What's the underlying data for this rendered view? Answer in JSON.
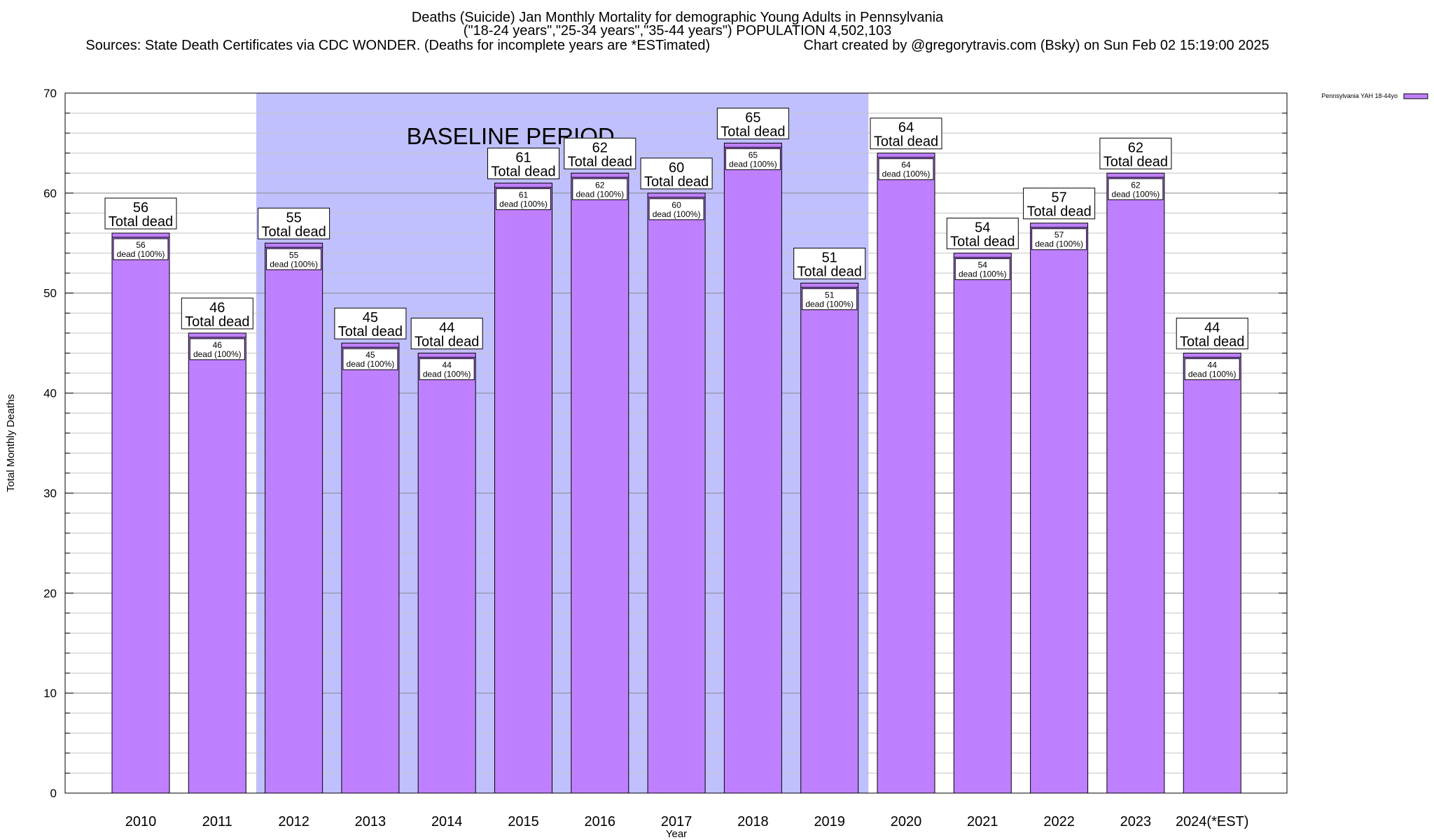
{
  "chart_data": {
    "type": "bar",
    "title": "Deaths (Suicide) Jan Monthly Mortality for demographic Young Adults in Pennsylvania",
    "subtitle": "(\"18-24 years\",\"25-34 years\",\"35-44 years\") POPULATION 4,502,103",
    "source": "Sources: State Death Certificates via CDC WONDER. (Deaths for incomplete years are *ESTimated)",
    "credit": "Chart created by @gregorytravis.com (Bsky) on Sun Feb 02 15:19:00 2025",
    "xlabel": "Year",
    "ylabel": "Total Monthly Deaths",
    "ylim": [
      0,
      70
    ],
    "yticks": [
      0,
      10,
      20,
      30,
      40,
      50,
      60,
      70
    ],
    "grid": true,
    "legend_position": "top-right",
    "categories": [
      "2010",
      "2011",
      "2012",
      "2013",
      "2014",
      "2015",
      "2016",
      "2017",
      "2018",
      "2019",
      "2020",
      "2021",
      "2022",
      "2023",
      "2024(*EST)"
    ],
    "series": [
      {
        "name": "Pennsylvania YAH 18-44yo",
        "color": "#bf80ff",
        "values": [
          56,
          46,
          55,
          45,
          44,
          61,
          62,
          60,
          65,
          51,
          64,
          54,
          57,
          62,
          44
        ]
      }
    ],
    "top_label_suffix": "Total dead",
    "inner_label_suffix": "dead (100%)",
    "baseline_period": {
      "label": "BASELINE PERIOD",
      "start": "2012",
      "end": "2019",
      "color": "#c0c0ff"
    }
  }
}
